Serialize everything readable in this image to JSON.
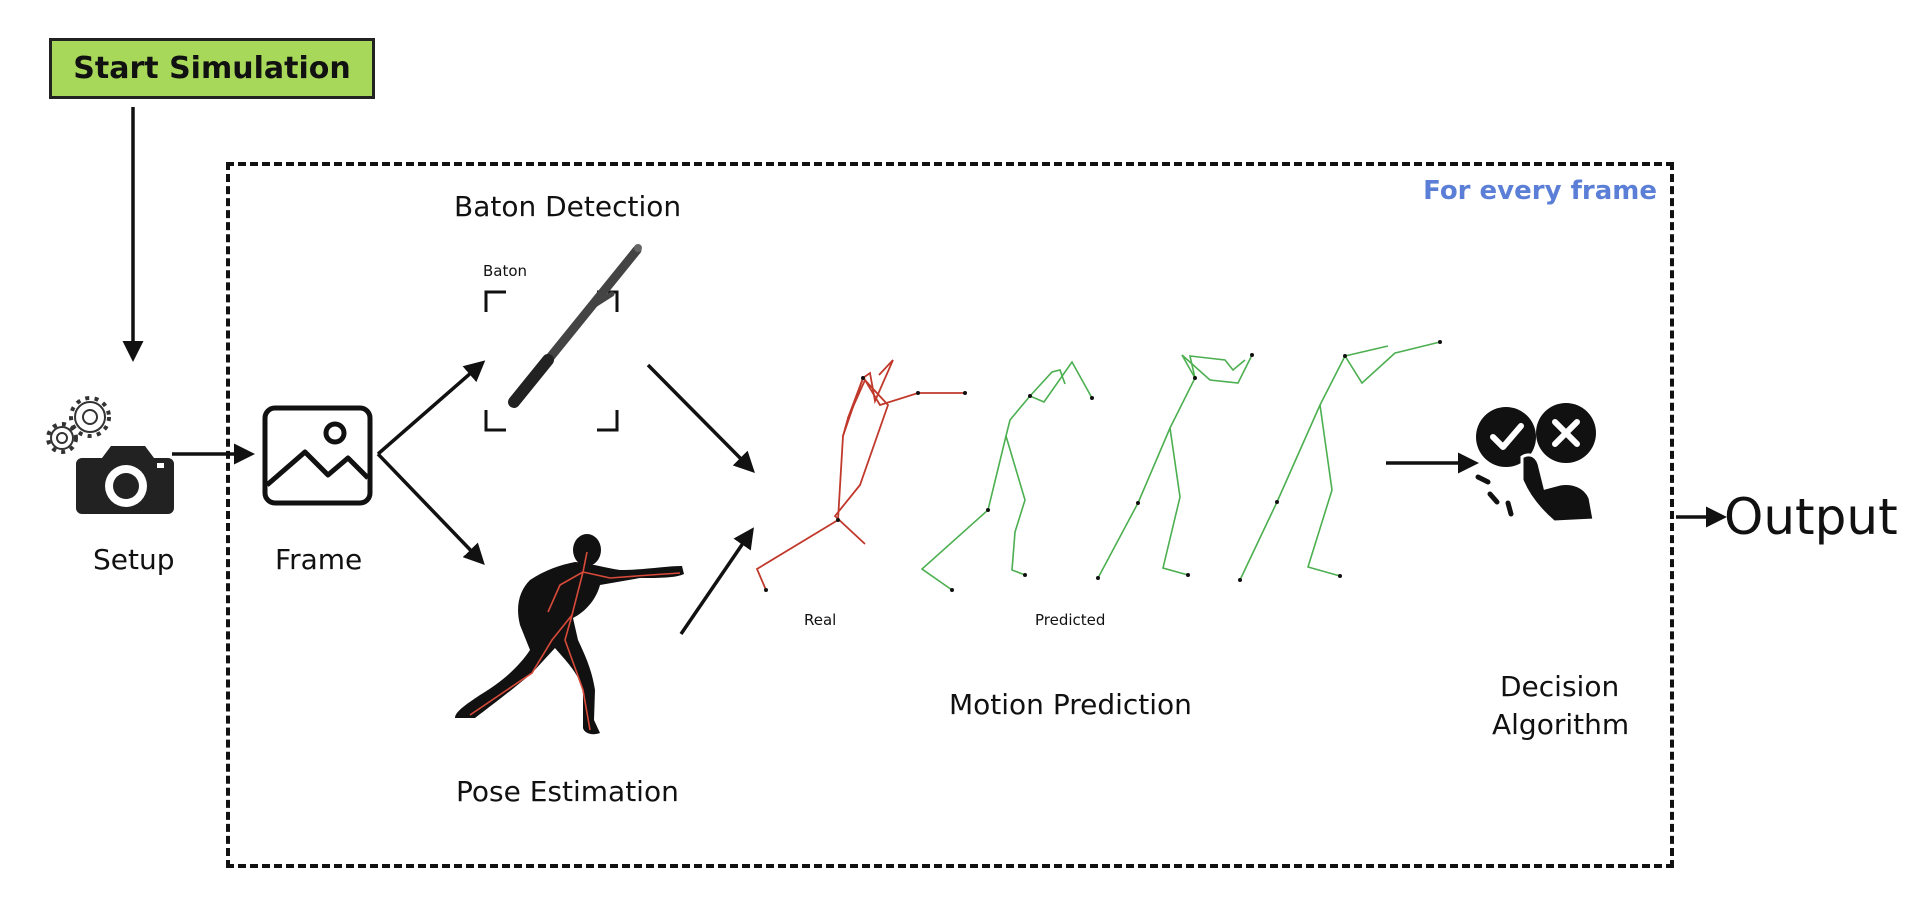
{
  "start_button": {
    "label": "Start Simulation"
  },
  "loop_box": {
    "label": "For every frame"
  },
  "steps": {
    "setup": "Setup",
    "frame": "Frame",
    "baton_detection": "Baton Detection",
    "baton_box_label": "Baton",
    "pose_estimation": "Pose Estimation",
    "motion_prediction": "Motion Prediction",
    "real_label": "Real",
    "predicted_label": "Predicted",
    "decision_line1": "Decision",
    "decision_line2": "Algorithm"
  },
  "output": {
    "label": "Output"
  },
  "colors": {
    "start_button": "#a8d85a",
    "loop_label": "#5b7fd6",
    "real_skeleton": "#c0392b",
    "predicted_skeleton": "#4caf50"
  },
  "icons": [
    "gear-icon",
    "camera-icon",
    "image-icon",
    "baton-icon",
    "pose-figure-icon",
    "skeleton-icon",
    "decision-hand-icon"
  ]
}
